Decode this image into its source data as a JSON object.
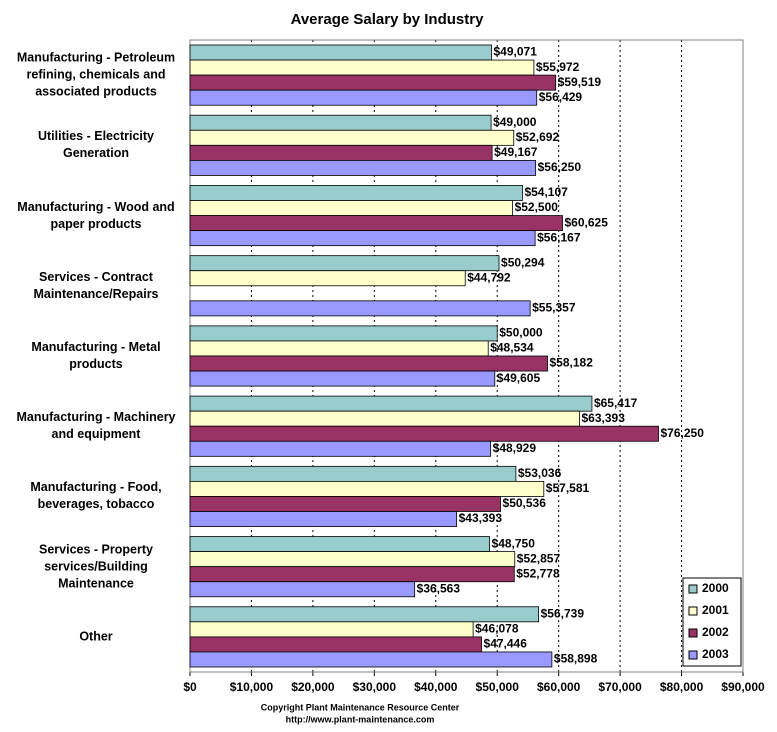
{
  "chart_data": {
    "type": "bar",
    "orientation": "horizontal",
    "title": "Average Salary by Industry",
    "categories": [
      "Manufacturing - Petroleum refining, chemicals and associated products",
      "Utilities - Electricity Generation",
      "Manufacturing - Wood and paper products",
      "Services - Contract Maintenance/Repairs",
      "Manufacturing - Metal products",
      "Manufacturing - Machinery and equipment",
      "Manufacturing - Food, beverages, tobacco",
      "Services - Property services/Building Maintenance",
      "Other"
    ],
    "series": [
      {
        "name": "2000",
        "color": "#99cccc",
        "values": [
          49071,
          49000,
          54107,
          50294,
          50000,
          65417,
          53036,
          48750,
          56739
        ],
        "value_labels": [
          "$49,071",
          "$49,000",
          "$54,107",
          "$50,294",
          "$50,000",
          "$65,417",
          "$53,036",
          "$48,750",
          "$56,739"
        ]
      },
      {
        "name": "2001",
        "color": "#ffffcc",
        "values": [
          55972,
          52692,
          52500,
          44792,
          48534,
          63393,
          57581,
          52857,
          46078
        ],
        "value_labels": [
          "$55,972",
          "$52,692",
          "$52,500",
          "$44,792",
          "$48,534",
          "$63,393",
          "$57,581",
          "$52,857",
          "$46,078"
        ]
      },
      {
        "name": "2002",
        "color": "#993366",
        "values": [
          59519,
          49167,
          60625,
          null,
          58182,
          76250,
          50536,
          52778,
          47446
        ],
        "value_labels": [
          "$59,519",
          "$49,167",
          "$60,625",
          null,
          "$58,182",
          "$76,250",
          "$50,536",
          "$52,778",
          "$47,446"
        ]
      },
      {
        "name": "2003",
        "color": "#9999ff",
        "values": [
          56429,
          56250,
          56167,
          55357,
          49605,
          48929,
          43393,
          36563,
          58898
        ],
        "value_labels": [
          "$56,429",
          "$56,250",
          "$56,167",
          "$55,357",
          "$49,605",
          "$48,929",
          "$43,393",
          "$36,563",
          "$58,898"
        ]
      }
    ],
    "xlim": [
      0,
      90000
    ],
    "xticks": [
      {
        "value": 0,
        "label": "$0"
      },
      {
        "value": 10000,
        "label": "$10,000"
      },
      {
        "value": 20000,
        "label": "$20,000"
      },
      {
        "value": 30000,
        "label": "$30,000"
      },
      {
        "value": 40000,
        "label": "$40,000"
      },
      {
        "value": 50000,
        "label": "$50,000"
      },
      {
        "value": 60000,
        "label": "$60,000"
      },
      {
        "value": 70000,
        "label": "$70,000"
      },
      {
        "value": 80000,
        "label": "$80,000"
      },
      {
        "value": 90000,
        "label": "$90,000"
      }
    ],
    "grid": true,
    "legend": "lower right",
    "footer": [
      "Copyright Plant Maintenance Resource Center",
      "http://www.plant-maintenance.com"
    ]
  }
}
